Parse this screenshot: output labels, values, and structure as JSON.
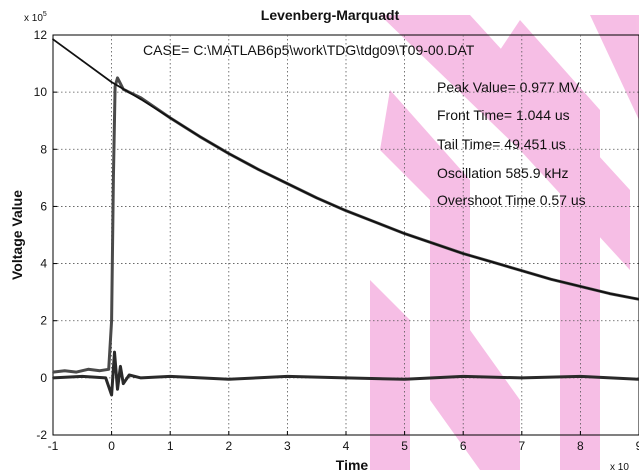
{
  "chart_data": {
    "type": "line",
    "title": "Levenberg-Marquadt",
    "xlabel": "Time",
    "ylabel": "Voltage Value",
    "x_exponent_label": "x 10",
    "y_exponent_label": "x 10",
    "y_exponent_power": "5",
    "xlim": [
      -1,
      9
    ],
    "ylim": [
      -2,
      12
    ],
    "x_ticks": [
      "-1",
      "0",
      "1",
      "2",
      "3",
      "4",
      "5",
      "6",
      "7",
      "8",
      "9"
    ],
    "y_ticks": [
      "-2",
      "0",
      "2",
      "4",
      "6",
      "8",
      "10",
      "12"
    ],
    "grid": true,
    "annotations": {
      "case": "CASE= C:\\MATLAB6p5\\work\\TDG\\tdg09\\T09-00.DAT",
      "peak": "Peak Value= 0.977 MV",
      "front": "Front Time= 1.044 us",
      "tail": "Tail Time= 49.451 us",
      "oscillation": "Oscillation  585.9  kHz",
      "overshoot": "Overshoot Time  0.57  us"
    },
    "series": [
      {
        "color": "#4a4a4a",
        "x": [
          -1.0,
          -0.8,
          -0.6,
          -0.4,
          -0.2,
          -0.05,
          0.0,
          0.03,
          0.06,
          0.1,
          0.15,
          0.2,
          0.5,
          1.0,
          1.5,
          2.0,
          2.5,
          3.0,
          3.5,
          4.0,
          4.5,
          5.0,
          5.5,
          6.0,
          6.5,
          7.0,
          7.5,
          8.0,
          8.5,
          9.0
        ],
        "y": [
          0.2,
          0.25,
          0.2,
          0.3,
          0.25,
          0.3,
          2.0,
          7.0,
          10.2,
          10.5,
          10.3,
          10.1,
          9.8,
          9.1,
          8.45,
          7.85,
          7.3,
          6.8,
          6.3,
          5.85,
          5.45,
          5.05,
          4.7,
          4.35,
          4.05,
          3.75,
          3.45,
          3.2,
          2.95,
          2.75
        ]
      },
      {
        "color": "#111111",
        "x": [
          -1.0,
          -0.5,
          0.0,
          0.5,
          1.0,
          1.5,
          2.0,
          2.5,
          3.0,
          3.5,
          4.0,
          4.5,
          5.0,
          5.5,
          6.0,
          6.5,
          7.0,
          7.5,
          8.0,
          8.5,
          9.0
        ],
        "y": [
          11.85,
          11.1,
          10.35,
          9.75,
          9.1,
          8.45,
          7.85,
          7.3,
          6.8,
          6.3,
          5.85,
          5.45,
          5.05,
          4.7,
          4.35,
          4.05,
          3.75,
          3.45,
          3.2,
          2.95,
          2.75
        ]
      },
      {
        "color": "#2a2a2a",
        "x": [
          -1.0,
          -0.5,
          -0.1,
          0.0,
          0.05,
          0.1,
          0.15,
          0.2,
          0.3,
          0.5,
          1.0,
          2.0,
          3.0,
          4.0,
          5.0,
          6.0,
          7.0,
          8.0,
          9.0
        ],
        "y": [
          0.0,
          0.05,
          0.0,
          -0.6,
          0.9,
          -0.4,
          0.4,
          -0.2,
          0.1,
          0.0,
          0.05,
          -0.05,
          0.05,
          0.0,
          -0.05,
          0.05,
          0.0,
          0.05,
          -0.05
        ]
      }
    ]
  }
}
